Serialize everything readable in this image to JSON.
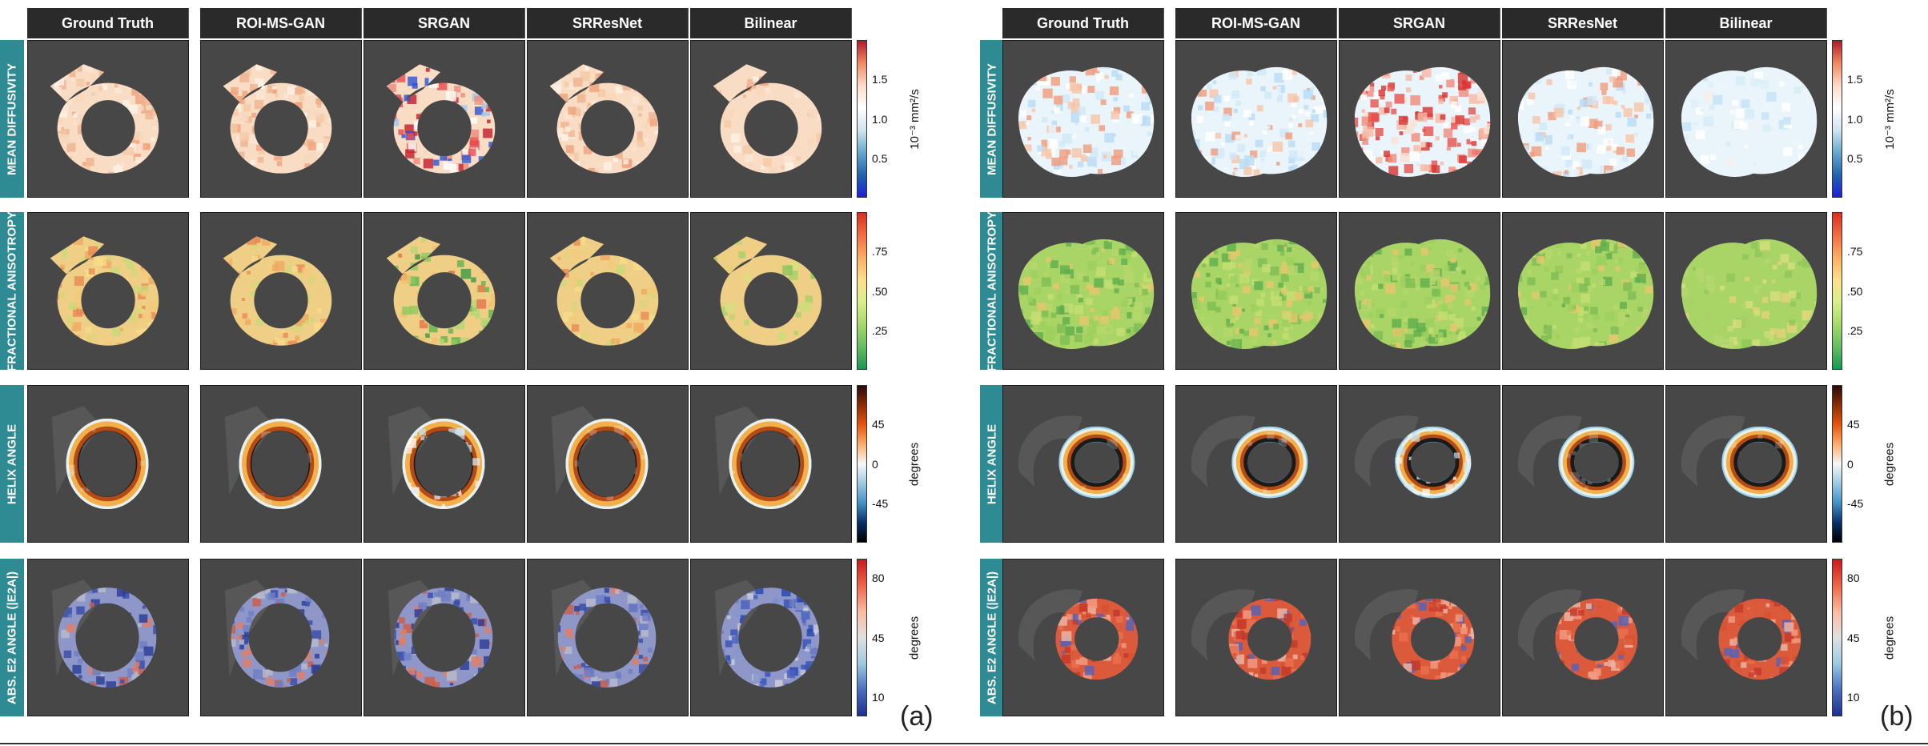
{
  "column_headers": [
    "Ground Truth",
    "ROI-MS-GAN",
    "SRGAN",
    "SRResNet",
    "Bilinear"
  ],
  "row_labels": [
    "MEAN DIFFUSIVITY",
    "FRACTIONAL ANISOTROPY",
    "HELIX ANGLE",
    "ABS. E2 ANGLE (|E2A|)"
  ],
  "colorbars": [
    {
      "ticks": [
        "1.5",
        "1.0",
        "0.5"
      ],
      "unit": "10⁻³ mm²/s",
      "scale": "red-white-blue"
    },
    {
      "ticks": [
        ".75",
        ".50",
        ".25"
      ],
      "unit": "",
      "scale": "red-yellow-green"
    },
    {
      "ticks": [
        "45",
        "0",
        "-45"
      ],
      "unit": "degrees",
      "scale": "dark-red-orange-blue"
    },
    {
      "ticks": [
        "80",
        "45",
        "10"
      ],
      "unit": "degrees",
      "scale": "red-gray-blue"
    }
  ],
  "figure_labels": [
    "(a)",
    "(b)"
  ],
  "colors": {
    "panel_bg": "#474747",
    "header_bg": "#2a2a2a",
    "row_label_bg": "#2e8b93"
  }
}
